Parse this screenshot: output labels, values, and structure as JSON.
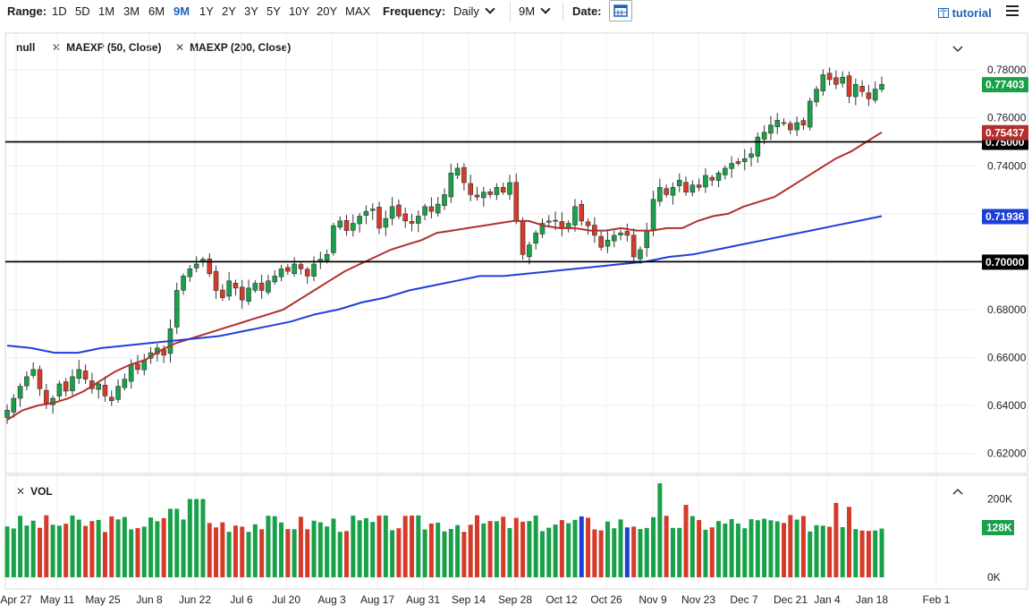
{
  "toolbar": {
    "range_label": "Range:",
    "ranges": [
      "1D",
      "5D",
      "1M",
      "3M",
      "6M",
      "9M",
      "1Y",
      "2Y",
      "3Y",
      "5Y",
      "10Y",
      "20Y",
      "MAX"
    ],
    "active_range": "9M",
    "frequency_label": "Frequency:",
    "frequency_value": "Daily",
    "period_value": "9M",
    "date_label": "Date:",
    "tutorial_label": "tutorial"
  },
  "legend": {
    "items": [
      "null",
      "MAEXP (50, Close)",
      "MAEXP (200, Close)"
    ],
    "vol_label": "VOL"
  },
  "chart_data": {
    "type": "candlestick",
    "y_ticks": [
      "0.78000",
      "0.76000",
      "0.74000",
      "0.72000",
      "0.70000",
      "0.68000",
      "0.66000",
      "0.64000",
      "0.62000"
    ],
    "y_range": [
      0.612,
      0.795
    ],
    "x_ticks": [
      "Apr 27",
      "May 11",
      "May 25",
      "Jun 8",
      "Jun 22",
      "Jul 6",
      "Jul 20",
      "Aug 3",
      "Aug 17",
      "Aug 31",
      "Sep 14",
      "Sep 28",
      "Oct 12",
      "Oct 26",
      "Nov 9",
      "Nov 23",
      "Dec 7",
      "Dec 21",
      "Jan 4",
      "Jan 18",
      "Feb 1"
    ],
    "last_price": "0.77403",
    "ma50_last": "0.75437",
    "ma200_last": "0.71936",
    "horizontal_levels": [
      {
        "value": 0.75,
        "label": "0.75000"
      },
      {
        "value": 0.7,
        "label": "0.70000"
      }
    ],
    "close_series": [
      0.638,
      0.643,
      0.648,
      0.652,
      0.655,
      0.647,
      0.641,
      0.643,
      0.649,
      0.646,
      0.652,
      0.655,
      0.651,
      0.647,
      0.649,
      0.644,
      0.642,
      0.648,
      0.651,
      0.657,
      0.655,
      0.659,
      0.662,
      0.664,
      0.661,
      0.672,
      0.688,
      0.694,
      0.697,
      0.699,
      0.701,
      0.695,
      0.688,
      0.685,
      0.692,
      0.689,
      0.684,
      0.689,
      0.691,
      0.688,
      0.692,
      0.694,
      0.697,
      0.696,
      0.699,
      0.697,
      0.694,
      0.699,
      0.701,
      0.703,
      0.715,
      0.717,
      0.713,
      0.716,
      0.719,
      0.721,
      0.722,
      0.714,
      0.718,
      0.723,
      0.719,
      0.717,
      0.716,
      0.719,
      0.723,
      0.721,
      0.724,
      0.728,
      0.737,
      0.739,
      0.733,
      0.728,
      0.727,
      0.729,
      0.728,
      0.731,
      0.729,
      0.733,
      0.717,
      0.703,
      0.707,
      0.712,
      0.716,
      0.717,
      0.717,
      0.714,
      0.716,
      0.723,
      0.717,
      0.715,
      0.711,
      0.706,
      0.709,
      0.711,
      0.712,
      0.711,
      0.702,
      0.705,
      0.713,
      0.726,
      0.731,
      0.728,
      0.731,
      0.734,
      0.729,
      0.732,
      0.731,
      0.736,
      0.734,
      0.737,
      0.739,
      0.741,
      0.741,
      0.743,
      0.745,
      0.752,
      0.754,
      0.757,
      0.759,
      0.758,
      0.755,
      0.758,
      0.757,
      0.767,
      0.772,
      0.778,
      0.776,
      0.774,
      0.777,
      0.769,
      0.774,
      0.771,
      0.768,
      0.772,
      0.774
    ],
    "ma50_series": [
      0.634,
      0.638,
      0.64,
      0.641,
      0.643,
      0.646,
      0.65,
      0.654,
      0.657,
      0.659,
      0.663,
      0.666,
      0.668,
      0.67,
      0.672,
      0.674,
      0.676,
      0.678,
      0.68,
      0.684,
      0.688,
      0.692,
      0.696,
      0.699,
      0.702,
      0.705,
      0.707,
      0.709,
      0.712,
      0.713,
      0.714,
      0.715,
      0.716,
      0.717,
      0.717,
      0.715,
      0.714,
      0.714,
      0.713,
      0.713,
      0.714,
      0.713,
      0.713,
      0.714,
      0.714,
      0.717,
      0.719,
      0.72,
      0.723,
      0.725,
      0.727,
      0.731,
      0.735,
      0.739,
      0.743,
      0.746,
      0.75,
      0.754
    ],
    "ma200_series": [
      0.665,
      0.664,
      0.662,
      0.662,
      0.664,
      0.665,
      0.666,
      0.667,
      0.668,
      0.669,
      0.671,
      0.673,
      0.675,
      0.678,
      0.68,
      0.683,
      0.685,
      0.688,
      0.69,
      0.692,
      0.694,
      0.694,
      0.695,
      0.696,
      0.697,
      0.698,
      0.699,
      0.7,
      0.702,
      0.703,
      0.705,
      0.707,
      0.709,
      0.711,
      0.713,
      0.715,
      0.717,
      0.719
    ],
    "volume": {
      "y_ticks": [
        "200K",
        "0K"
      ],
      "last_volume": "128K",
      "max_k": 240
    }
  }
}
